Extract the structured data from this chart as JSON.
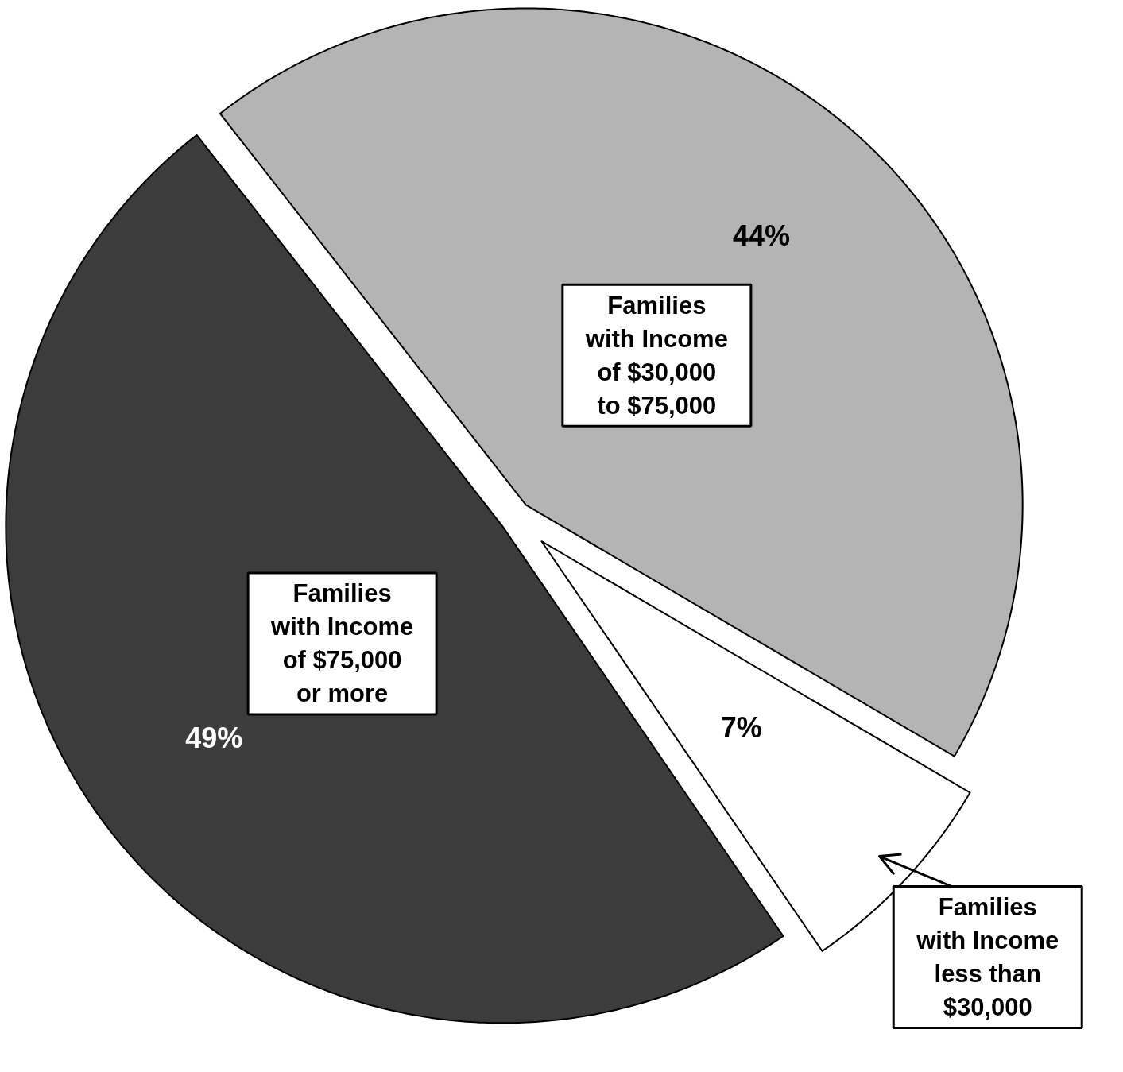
{
  "chart_data": {
    "type": "pie",
    "categories": [
      "Families\nwith Income\nof $30,000\nto $75,000",
      "Families\nwith Income\nless than\n$30,000",
      "Families\nwith Income\nof $75,000\nor more"
    ],
    "values": [
      44,
      7,
      49
    ],
    "colors": [
      "#b4b4b4",
      "#ffffff",
      "#3c3c3c"
    ],
    "value_labels": [
      "44%",
      "7%",
      "49%"
    ]
  }
}
